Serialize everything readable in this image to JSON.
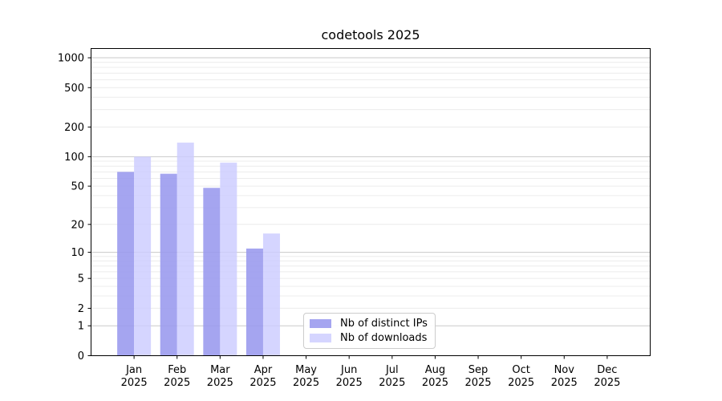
{
  "chart_data": {
    "type": "bar",
    "title": "codetools 2025",
    "categories": [
      "Jan 2025",
      "Feb 2025",
      "Mar 2025",
      "Apr 2025",
      "May 2025",
      "Jun 2025",
      "Jul 2025",
      "Aug 2025",
      "Sep 2025",
      "Oct 2025",
      "Nov 2025",
      "Dec 2025"
    ],
    "series": [
      {
        "name": "Nb of distinct IPs",
        "color": "#9999ee",
        "fill_opacity": 0.88,
        "values": [
          70,
          67,
          48,
          11,
          0,
          0,
          0,
          0,
          0,
          0,
          0,
          0
        ]
      },
      {
        "name": "Nb of downloads",
        "color": "#ccccff",
        "fill_opacity": 0.82,
        "values": [
          100,
          139,
          87,
          16,
          0,
          0,
          0,
          0,
          0,
          0,
          0,
          0
        ]
      }
    ],
    "yticks": [
      0,
      1,
      2,
      5,
      10,
      20,
      50,
      100,
      200,
      500,
      1000
    ],
    "yscale": "log10(1+x)",
    "ylim": [
      0,
      1260
    ],
    "xlabel": "",
    "ylabel": "",
    "grid": true,
    "legend_position": "bottom-center",
    "colors": {
      "major_grid": "#c9c9c9",
      "minor_grid": "#ececec",
      "axis": "#000000",
      "tick_label": "#000000",
      "background": "#ffffff"
    }
  }
}
